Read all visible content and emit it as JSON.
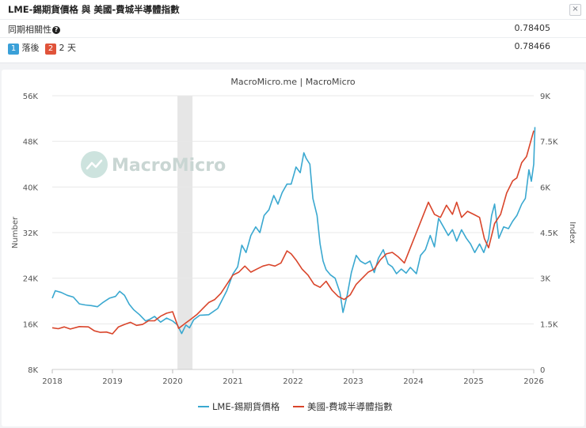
{
  "header": {
    "title": "LME-錫期貨價格 與 美國-費城半導體指數",
    "close_label": "×"
  },
  "stats": {
    "corr_label": "同期相關性",
    "corr_help": "?",
    "corr_value": "0.78405",
    "lag_badge_1": "1",
    "lag_text_1": "落後",
    "lag_badge_2": "2",
    "lag_text_2": "2 天",
    "lag_value": "0.78466"
  },
  "colors": {
    "tin": "#3aa8d0",
    "sox": "#d9452b",
    "badge1": "#3aa0d8",
    "badge2": "#e0533a"
  },
  "chart_data": {
    "type": "line",
    "title": "MacroMicro.me | MacroMicro",
    "watermark": "MacroMicro",
    "ylabel_left": "Number",
    "ylabel_right": "Index",
    "ylim_left": [
      8000,
      56000
    ],
    "ylim_right": [
      0,
      9000
    ],
    "yticks_left": [
      "8K",
      "16K",
      "24K",
      "32K",
      "40K",
      "48K",
      "56K"
    ],
    "yticks_right": [
      "0",
      "1.5K",
      "3K",
      "4.5K",
      "6K",
      "7.5K",
      "9K"
    ],
    "xlim": [
      2018,
      2026
    ],
    "xticks": [
      "2018",
      "2019",
      "2020",
      "2021",
      "2022",
      "2023",
      "2024",
      "2025",
      "2026"
    ],
    "recession_band": [
      2020.08,
      2020.33
    ],
    "series": [
      {
        "name": "LME-錫期貨價格",
        "axis": "left",
        "x": [
          2018.0,
          2018.05,
          2018.15,
          2018.25,
          2018.35,
          2018.45,
          2018.55,
          2018.65,
          2018.75,
          2018.85,
          2018.95,
          2019.05,
          2019.12,
          2019.2,
          2019.28,
          2019.35,
          2019.45,
          2019.55,
          2019.62,
          2019.7,
          2019.8,
          2019.9,
          2020.0,
          2020.08,
          2020.15,
          2020.22,
          2020.28,
          2020.35,
          2020.45,
          2020.6,
          2020.75,
          2020.9,
          2021.0,
          2021.08,
          2021.15,
          2021.22,
          2021.3,
          2021.38,
          2021.45,
          2021.52,
          2021.6,
          2021.68,
          2021.75,
          2021.82,
          2021.9,
          2021.97,
          2022.05,
          2022.12,
          2022.18,
          2022.22,
          2022.28,
          2022.33,
          2022.4,
          2022.45,
          2022.5,
          2022.55,
          2022.62,
          2022.7,
          2022.78,
          2022.83,
          2022.9,
          2022.97,
          2023.05,
          2023.12,
          2023.2,
          2023.28,
          2023.35,
          2023.42,
          2023.5,
          2023.58,
          2023.65,
          2023.72,
          2023.8,
          2023.88,
          2023.95,
          2024.05,
          2024.12,
          2024.2,
          2024.28,
          2024.35,
          2024.42,
          2024.5,
          2024.58,
          2024.65,
          2024.72,
          2024.8,
          2024.88,
          2024.95,
          2025.02,
          2025.1,
          2025.17,
          2025.25,
          2025.3,
          2025.35,
          2025.42,
          2025.5,
          2025.58,
          2025.65,
          2025.72,
          2025.8,
          2025.86,
          2025.92,
          2025.96,
          2026.0,
          2026.02
        ],
        "values": [
          20500,
          21800,
          21500,
          21000,
          20700,
          19500,
          19300,
          19200,
          19000,
          19800,
          20500,
          20800,
          21700,
          21000,
          19400,
          18500,
          17600,
          16500,
          16800,
          17300,
          16300,
          17000,
          16500,
          15800,
          14300,
          15800,
          15300,
          16700,
          17500,
          17600,
          18700,
          21800,
          24700,
          26000,
          29800,
          28500,
          31500,
          33000,
          32000,
          35000,
          36000,
          38500,
          37000,
          39000,
          40500,
          40500,
          43500,
          42500,
          46000,
          45000,
          44000,
          38000,
          35000,
          30000,
          27000,
          25500,
          24600,
          24000,
          21500,
          18000,
          21000,
          25000,
          28000,
          27000,
          26500,
          27000,
          25000,
          27500,
          29000,
          26500,
          26000,
          24800,
          25600,
          24900,
          25900,
          24800,
          28000,
          29000,
          31500,
          29500,
          34500,
          33000,
          31500,
          32500,
          30500,
          32500,
          31000,
          30000,
          28500,
          30000,
          28500,
          31000,
          35000,
          37000,
          31000,
          33000,
          32700,
          34000,
          35000,
          37000,
          38000,
          43000,
          41000,
          44000,
          50500
        ]
      },
      {
        "name": "美國-費城半導體指數",
        "axis": "right",
        "x": [
          2018.0,
          2018.1,
          2018.2,
          2018.3,
          2018.45,
          2018.6,
          2018.7,
          2018.8,
          2018.9,
          2019.0,
          2019.1,
          2019.2,
          2019.3,
          2019.4,
          2019.5,
          2019.6,
          2019.7,
          2019.8,
          2019.9,
          2020.0,
          2020.1,
          2020.2,
          2020.3,
          2020.4,
          2020.5,
          2020.6,
          2020.7,
          2020.8,
          2020.9,
          2021.0,
          2021.1,
          2021.2,
          2021.3,
          2021.4,
          2021.5,
          2021.6,
          2021.7,
          2021.8,
          2021.9,
          2021.97,
          2022.05,
          2022.15,
          2022.25,
          2022.35,
          2022.45,
          2022.55,
          2022.65,
          2022.75,
          2022.85,
          2022.95,
          2023.05,
          2023.15,
          2023.25,
          2023.35,
          2023.45,
          2023.55,
          2023.65,
          2023.75,
          2023.85,
          2023.95,
          2024.05,
          2024.15,
          2024.25,
          2024.35,
          2024.45,
          2024.55,
          2024.65,
          2024.72,
          2024.8,
          2024.9,
          2025.0,
          2025.1,
          2025.18,
          2025.25,
          2025.35,
          2025.45,
          2025.55,
          2025.65,
          2025.72,
          2025.8,
          2025.88,
          2025.95,
          2026.0
        ],
        "values": [
          1370,
          1340,
          1400,
          1330,
          1410,
          1400,
          1270,
          1220,
          1230,
          1170,
          1400,
          1480,
          1550,
          1450,
          1480,
          1600,
          1600,
          1750,
          1850,
          1900,
          1350,
          1500,
          1650,
          1800,
          2000,
          2200,
          2300,
          2500,
          2800,
          3100,
          3200,
          3400,
          3200,
          3300,
          3400,
          3450,
          3400,
          3500,
          3900,
          3800,
          3600,
          3300,
          3100,
          2800,
          2700,
          2900,
          2600,
          2400,
          2300,
          2450,
          2800,
          3000,
          3200,
          3300,
          3600,
          3800,
          3850,
          3700,
          3500,
          4000,
          4500,
          5000,
          5500,
          5100,
          5000,
          5400,
          5100,
          5500,
          5000,
          5200,
          5100,
          5000,
          4300,
          4000,
          4800,
          5100,
          5800,
          6200,
          6300,
          6800,
          7000,
          7500,
          7850
        ]
      }
    ]
  }
}
